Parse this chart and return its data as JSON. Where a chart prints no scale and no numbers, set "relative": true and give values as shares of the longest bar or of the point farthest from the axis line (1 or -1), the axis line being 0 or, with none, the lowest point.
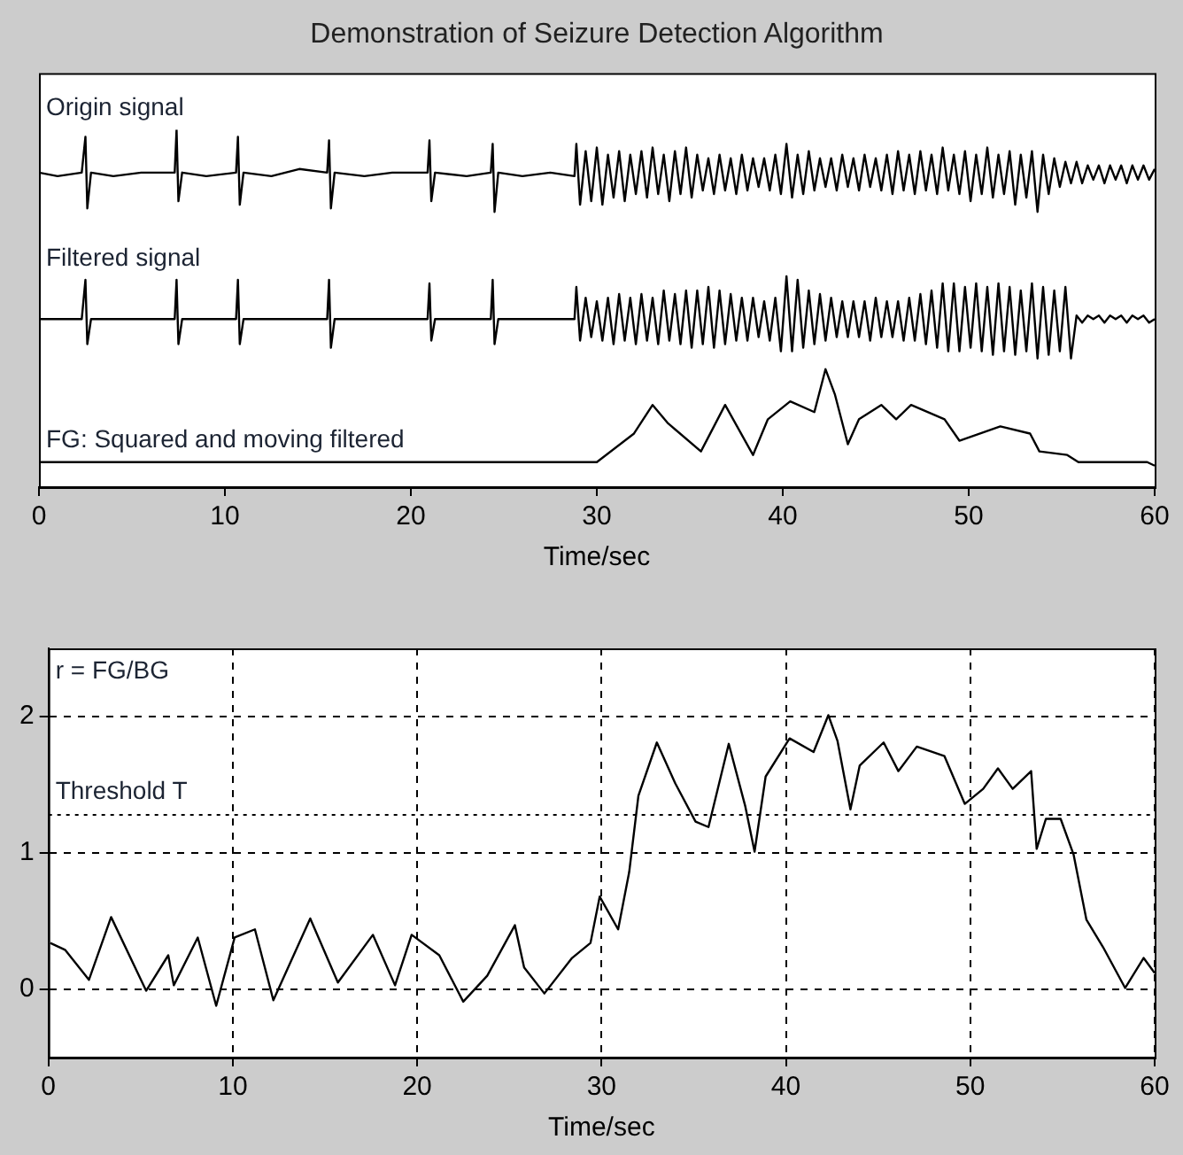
{
  "chart_data": [
    {
      "type": "line",
      "title": "Demonstration of Seizure Detection Algorithm",
      "xlabel": "Time/sec",
      "relative": true,
      "tick_labels": "x",
      "xlim": [
        0,
        60
      ],
      "xticks": [
        0,
        10,
        20,
        30,
        40,
        50,
        60
      ],
      "x": [
        0,
        1,
        2.3,
        2.5,
        2.6,
        2.8,
        4,
        5.5,
        7.3,
        7.4,
        7.5,
        7.7,
        9,
        10.6,
        10.7,
        10.8,
        11,
        12.5,
        14,
        15.5,
        15.6,
        15.7,
        15.9,
        17.5,
        19,
        20.9,
        21,
        21.1,
        21.3,
        23,
        24.3,
        24.4,
        24.5,
        24.7,
        26,
        27.5,
        28.8,
        28.9,
        29.1,
        29.4,
        29.7,
        30,
        30.3,
        30.6,
        30.9,
        31.2,
        31.5,
        31.8,
        32.1,
        32.4,
        32.7,
        33,
        33.3,
        33.6,
        33.9,
        34.2,
        34.5,
        34.8,
        35.1,
        35.4,
        35.7,
        36,
        36.3,
        36.6,
        36.9,
        37.2,
        37.5,
        37.8,
        38.1,
        38.4,
        38.7,
        39,
        39.3,
        39.6,
        39.9,
        40.2,
        40.5,
        40.8,
        41.1,
        41.4,
        41.7,
        42,
        42.3,
        42.6,
        42.9,
        43.2,
        43.5,
        43.8,
        44.1,
        44.4,
        44.7,
        45,
        45.3,
        45.6,
        45.9,
        46.2,
        46.5,
        46.8,
        47.1,
        47.4,
        47.7,
        48,
        48.3,
        48.6,
        48.9,
        49.2,
        49.5,
        49.8,
        50.1,
        50.4,
        50.7,
        51,
        51.3,
        51.6,
        51.9,
        52.2,
        52.5,
        52.8,
        53.1,
        53.4,
        53.7,
        54,
        54.3,
        54.6,
        54.9,
        55.2,
        55.5,
        55.8,
        56.1,
        56.4,
        56.7,
        57,
        57.3,
        57.6,
        57.9,
        58.2,
        58.5,
        58.8,
        59.1,
        59.4,
        59.7,
        60
      ],
      "series": [
        {
          "name": "Origin signal",
          "color": "#000000",
          "values": [
            0.88,
            0.87,
            0.88,
            0.98,
            0.78,
            0.88,
            0.87,
            0.88,
            0.88,
            1,
            0.8,
            0.88,
            0.87,
            0.88,
            0.98,
            0.79,
            0.88,
            0.87,
            0.89,
            0.88,
            0.97,
            0.78,
            0.88,
            0.87,
            0.88,
            0.88,
            0.97,
            0.8,
            0.88,
            0.87,
            0.88,
            0.96,
            0.77,
            0.88,
            0.87,
            0.88,
            0.87,
            0.96,
            0.79,
            0.94,
            0.8,
            0.95,
            0.79,
            0.93,
            0.81,
            0.94,
            0.8,
            0.93,
            0.82,
            0.94,
            0.81,
            0.95,
            0.82,
            0.93,
            0.8,
            0.94,
            0.82,
            0.95,
            0.81,
            0.93,
            0.83,
            0.92,
            0.82,
            0.93,
            0.83,
            0.92,
            0.82,
            0.93,
            0.83,
            0.92,
            0.84,
            0.92,
            0.83,
            0.93,
            0.82,
            0.96,
            0.81,
            0.93,
            0.82,
            0.94,
            0.83,
            0.92,
            0.84,
            0.92,
            0.83,
            0.93,
            0.84,
            0.92,
            0.83,
            0.93,
            0.84,
            0.92,
            0.83,
            0.93,
            0.82,
            0.94,
            0.83,
            0.93,
            0.82,
            0.94,
            0.83,
            0.93,
            0.82,
            0.95,
            0.83,
            0.93,
            0.82,
            0.94,
            0.8,
            0.93,
            0.82,
            0.95,
            0.81,
            0.93,
            0.82,
            0.94,
            0.79,
            0.93,
            0.81,
            0.94,
            0.77,
            0.93,
            0.82,
            0.92,
            0.84,
            0.91,
            0.85,
            0.91,
            0.85,
            0.9,
            0.86,
            0.9,
            0.85,
            0.9,
            0.86,
            0.9,
            0.85,
            0.9,
            0.86,
            0.9,
            0.86,
            0.89
          ]
        },
        {
          "name": "Filtered signal",
          "color": "#000000",
          "values": [
            0.47,
            0.47,
            0.47,
            0.58,
            0.4,
            0.47,
            0.47,
            0.47,
            0.47,
            0.58,
            0.4,
            0.47,
            0.47,
            0.47,
            0.58,
            0.4,
            0.47,
            0.47,
            0.47,
            0.47,
            0.58,
            0.39,
            0.47,
            0.47,
            0.47,
            0.47,
            0.57,
            0.41,
            0.47,
            0.47,
            0.47,
            0.58,
            0.4,
            0.47,
            0.47,
            0.47,
            0.47,
            0.56,
            0.41,
            0.53,
            0.42,
            0.52,
            0.41,
            0.53,
            0.4,
            0.54,
            0.41,
            0.53,
            0.4,
            0.54,
            0.41,
            0.53,
            0.4,
            0.55,
            0.41,
            0.54,
            0.4,
            0.55,
            0.39,
            0.55,
            0.4,
            0.56,
            0.39,
            0.55,
            0.4,
            0.54,
            0.41,
            0.53,
            0.41,
            0.53,
            0.42,
            0.52,
            0.41,
            0.53,
            0.38,
            0.59,
            0.38,
            0.58,
            0.39,
            0.55,
            0.4,
            0.54,
            0.41,
            0.53,
            0.42,
            0.52,
            0.42,
            0.52,
            0.42,
            0.52,
            0.41,
            0.53,
            0.42,
            0.52,
            0.42,
            0.52,
            0.41,
            0.53,
            0.41,
            0.54,
            0.4,
            0.55,
            0.39,
            0.57,
            0.38,
            0.57,
            0.38,
            0.56,
            0.39,
            0.57,
            0.38,
            0.56,
            0.37,
            0.57,
            0.38,
            0.56,
            0.37,
            0.55,
            0.38,
            0.57,
            0.36,
            0.56,
            0.37,
            0.55,
            0.38,
            0.56,
            0.36,
            0.48,
            0.46,
            0.48,
            0.47,
            0.48,
            0.46,
            0.48,
            0.47,
            0.48,
            0.46,
            0.48,
            0.47,
            0.48,
            0.46,
            0.47
          ]
        },
        {
          "name": "FG: Squared and moving filtered",
          "color": "#000000",
          "x": [
            0,
            5,
            8,
            13,
            20,
            24,
            27,
            29,
            30,
            32,
            33,
            33.8,
            35.6,
            36.9,
            38.4,
            39.2,
            40.4,
            41.7,
            42.3,
            42.8,
            43.5,
            44.1,
            45.3,
            46.1,
            46.9,
            48.7,
            49.5,
            51.7,
            53.3,
            53.8,
            55.3,
            55.9,
            59.6,
            60
          ],
          "values": [
            0.07,
            0.07,
            0.07,
            0.07,
            0.07,
            0.07,
            0.07,
            0.07,
            0.07,
            0.15,
            0.23,
            0.18,
            0.1,
            0.23,
            0.09,
            0.19,
            0.24,
            0.21,
            0.33,
            0.26,
            0.12,
            0.19,
            0.23,
            0.19,
            0.23,
            0.19,
            0.13,
            0.17,
            0.15,
            0.1,
            0.09,
            0.07,
            0.07,
            0.06
          ]
        }
      ]
    },
    {
      "type": "line",
      "xlabel": "Time/sec",
      "xlim": [
        0,
        60
      ],
      "xticks": [
        0,
        10,
        20,
        30,
        40,
        50,
        60
      ],
      "ylim": [
        -0.5,
        2.5
      ],
      "yticks": [
        0,
        1,
        2
      ],
      "grid": true,
      "annotations": [
        "r = FG/BG"
      ],
      "ref_lines": [
        {
          "axis": "y",
          "value": 1.28,
          "label": "Threshold T"
        }
      ],
      "x": [
        0.1,
        0.9,
        2.2,
        3.4,
        5.3,
        6.5,
        6.8,
        8.1,
        9.1,
        10.1,
        11.2,
        12.2,
        14.2,
        15.7,
        17.6,
        18.8,
        19.7,
        21.2,
        22.5,
        23.8,
        25.3,
        25.8,
        26.9,
        28.4,
        29.4,
        29.9,
        30.9,
        31.5,
        32,
        33,
        34,
        35.1,
        35.8,
        36.9,
        37.8,
        38.3,
        38.9,
        40.2,
        41.5,
        42.3,
        42.8,
        43.5,
        44,
        45.3,
        46.1,
        47.1,
        48.6,
        49.7,
        50.7,
        51.5,
        52.3,
        53.3,
        53.6,
        54.1,
        54.9,
        55.6,
        56.3,
        57.2,
        58.4,
        59.4,
        60
      ],
      "series": [
        {
          "color": "#000000",
          "values": [
            0.34,
            0.29,
            0.07,
            0.53,
            -0.01,
            0.25,
            0.03,
            0.38,
            -0.12,
            0.38,
            0.44,
            -0.08,
            0.52,
            0.05,
            0.4,
            0.03,
            0.4,
            0.25,
            -0.09,
            0.1,
            0.47,
            0.16,
            -0.03,
            0.23,
            0.34,
            0.68,
            0.44,
            0.86,
            1.42,
            1.81,
            1.51,
            1.23,
            1.19,
            1.8,
            1.34,
            1.01,
            1.56,
            1.84,
            1.74,
            2.01,
            1.82,
            1.32,
            1.64,
            1.81,
            1.6,
            1.78,
            1.71,
            1.36,
            1.47,
            1.62,
            1.47,
            1.6,
            1.03,
            1.25,
            1.25,
            0.99,
            0.51,
            0.31,
            0.01,
            0.23,
            0.12
          ]
        }
      ]
    }
  ]
}
